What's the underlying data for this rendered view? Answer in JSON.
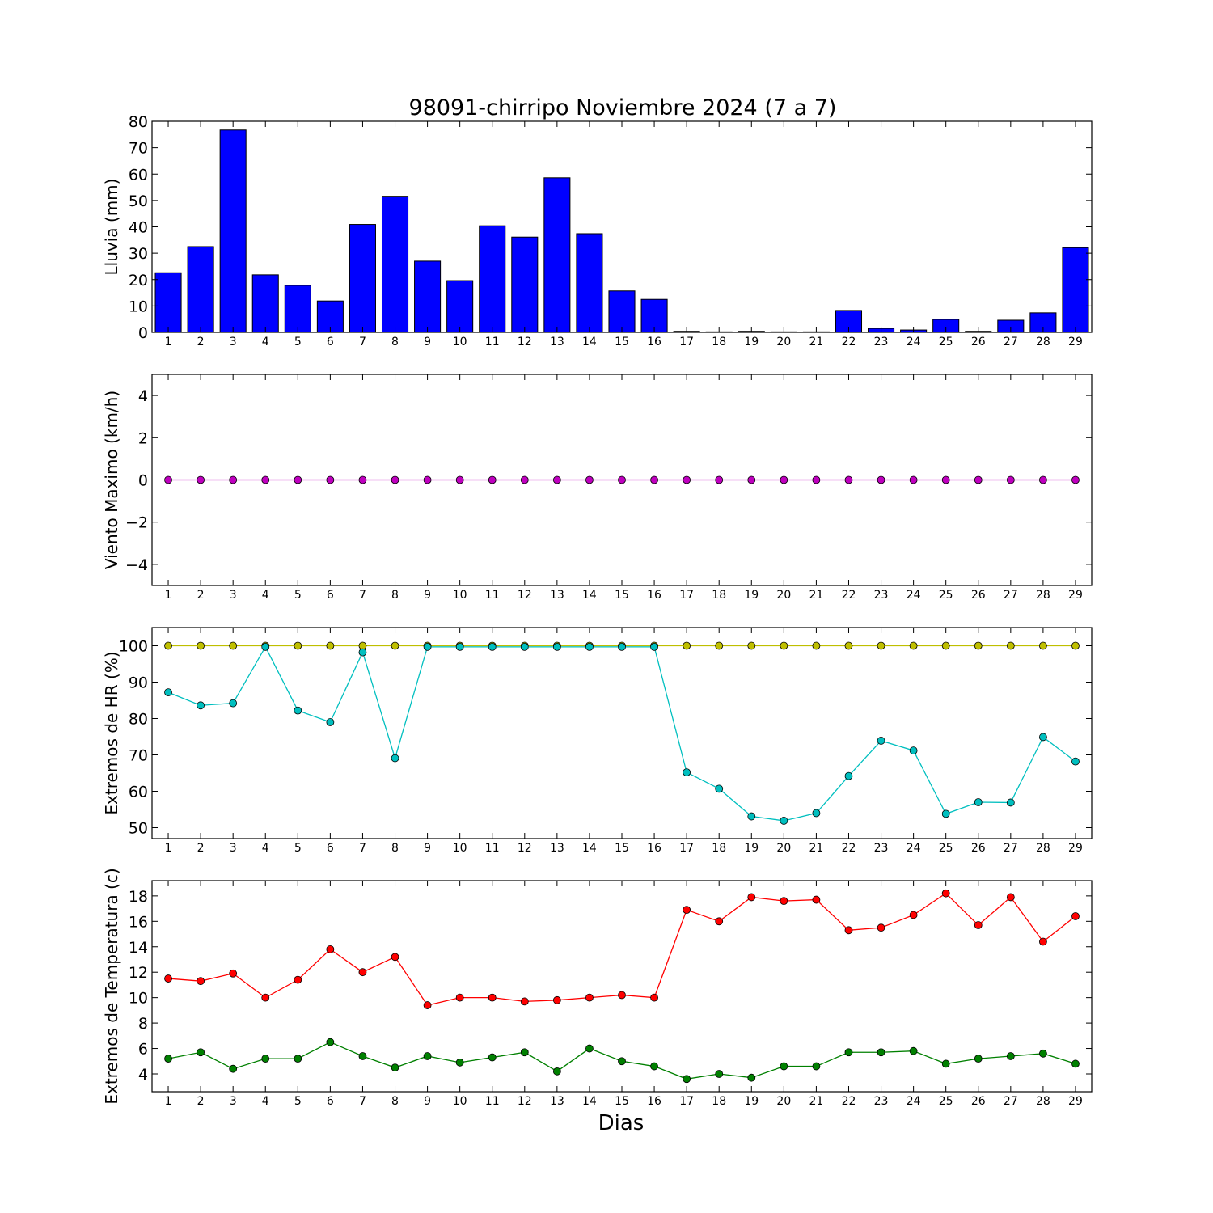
{
  "chart_data": {
    "title": "98091-chirripo Noviembre 2024  (7 a 7)",
    "xlabel": "Dias",
    "days": [
      1,
      2,
      3,
      4,
      5,
      6,
      7,
      8,
      9,
      10,
      11,
      12,
      13,
      14,
      15,
      16,
      17,
      18,
      19,
      20,
      21,
      22,
      23,
      24,
      25,
      26,
      27,
      28,
      29
    ],
    "panels": [
      {
        "type": "bar",
        "ylabel": "Lluvia (mm)",
        "ylim": [
          0,
          80
        ],
        "yticks": [
          0,
          10,
          20,
          30,
          40,
          50,
          60,
          70,
          80
        ],
        "series": [
          {
            "color": "#0000ff",
            "values": [
              22.6,
              32.5,
              76.7,
              21.8,
              17.8,
              11.9,
              40.9,
              51.6,
              27.0,
              19.6,
              40.4,
              36.1,
              58.6,
              37.4,
              15.7,
              12.5,
              0.4,
              0.2,
              0.4,
              0.2,
              0.2,
              8.3,
              1.5,
              0.9,
              4.9,
              0.4,
              4.6,
              7.4,
              32.1
            ]
          }
        ]
      },
      {
        "type": "line",
        "ylabel": "Viento Maximo (km/h)",
        "ylim": [
          -5,
          5
        ],
        "yticks": [
          -4,
          -2,
          0,
          2,
          4
        ],
        "series": [
          {
            "color": "#bf00bf",
            "values": [
              0,
              0,
              0,
              0,
              0,
              0,
              0,
              0,
              0,
              0,
              0,
              0,
              0,
              0,
              0,
              0,
              0,
              0,
              0,
              0,
              0,
              0,
              0,
              0,
              0,
              0,
              0,
              0,
              0
            ]
          }
        ]
      },
      {
        "type": "line",
        "ylabel": "Extremos de HR (%)",
        "ylim": [
          47,
          105
        ],
        "yticks": [
          50,
          60,
          70,
          80,
          90,
          100
        ],
        "series": [
          {
            "color": "#bfbf00",
            "values": [
              100,
              100,
              100,
              100,
              100,
              100,
              100,
              100,
              100,
              100,
              100,
              100,
              100,
              100,
              100,
              100,
              100,
              100,
              100,
              100,
              100,
              100,
              100,
              100,
              100,
              100,
              100,
              100,
              100
            ]
          },
          {
            "color": "#00bfbf",
            "values": [
              87.2,
              83.6,
              84.2,
              99.7,
              82.2,
              79.0,
              98.2,
              69.1,
              99.7,
              99.7,
              99.7,
              99.7,
              99.7,
              99.7,
              99.7,
              99.7,
              65.2,
              60.7,
              53.1,
              51.9,
              54.0,
              64.2,
              73.9,
              71.2,
              53.8,
              57.0,
              56.9,
              74.9,
              68.2
            ]
          }
        ]
      },
      {
        "type": "line",
        "ylabel": "Extremos de Temperatura (c)",
        "ylim": [
          2.6,
          19.2
        ],
        "yticks": [
          4,
          6,
          8,
          10,
          12,
          14,
          16,
          18
        ],
        "series": [
          {
            "color": "#ff0000",
            "values": [
              11.5,
              11.3,
              11.9,
              10.0,
              11.4,
              13.8,
              12.0,
              13.2,
              9.4,
              10.0,
              10.0,
              9.7,
              9.8,
              10.0,
              10.2,
              10.0,
              16.9,
              16.0,
              17.9,
              17.6,
              17.7,
              15.3,
              15.5,
              16.5,
              18.2,
              15.7,
              17.9,
              14.4,
              16.4
            ]
          },
          {
            "color": "#008000",
            "values": [
              5.2,
              5.7,
              4.4,
              5.2,
              5.2,
              6.5,
              5.4,
              4.5,
              5.4,
              4.9,
              5.3,
              5.7,
              4.2,
              6.0,
              5.0,
              4.6,
              3.6,
              4.0,
              3.7,
              4.6,
              4.6,
              5.7,
              5.7,
              5.8,
              4.8,
              5.2,
              5.4,
              5.6,
              4.8
            ]
          }
        ]
      }
    ]
  }
}
